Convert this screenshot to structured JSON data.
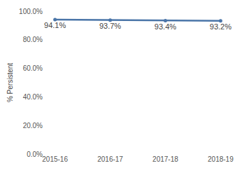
{
  "chart_data": {
    "type": "line",
    "y_label": "% Persistent",
    "categories": [
      "2015-16",
      "2016-17",
      "2017-18",
      "2018-19"
    ],
    "values": [
      94.1,
      93.7,
      93.4,
      93.2
    ],
    "value_labels": [
      "94.1%",
      "93.7%",
      "93.4%",
      "93.2%"
    ],
    "data_labels": true,
    "color": "#4a75a8",
    "marker": "circle",
    "ylim": [
      0,
      100
    ],
    "yticks": [
      {
        "value": 0,
        "label": "0.0%"
      },
      {
        "value": 20,
        "label": "20.0%"
      },
      {
        "value": 40,
        "label": "40.0%"
      },
      {
        "value": 60,
        "label": "60.0%"
      },
      {
        "value": 80,
        "label": "80.0%"
      },
      {
        "value": 100,
        "label": "100.0%"
      }
    ],
    "grid": false
  }
}
